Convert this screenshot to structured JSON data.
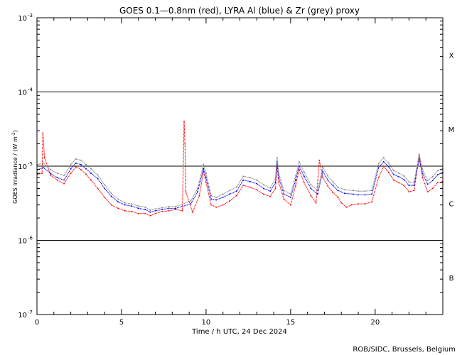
{
  "chart_data": {
    "type": "scatter",
    "title": "GOES 0.1—0.8nm (red), LYRA Al (blue) & Zr (grey) proxy",
    "xlabel": "Time / h UTC, 24 Dec 2024",
    "ylabel": "GOES Irradiance / (W m",
    "ylabel_exp": "-2",
    "ylabel_close": ")",
    "xlim": [
      0,
      24
    ],
    "ylim": [
      1e-07,
      0.001
    ],
    "yscale": "log",
    "x_ticks": [
      {
        "value": 0,
        "label": "0"
      },
      {
        "value": 5,
        "label": "5"
      },
      {
        "value": 10,
        "label": "10"
      },
      {
        "value": 15,
        "label": "15"
      },
      {
        "value": 20,
        "label": "20"
      }
    ],
    "y_ticks": [
      {
        "value": 0.001,
        "base": "10",
        "exp": "-3"
      },
      {
        "value": 0.0001,
        "base": "10",
        "exp": "-4"
      },
      {
        "value": 1e-05,
        "base": "10",
        "exp": "-5"
      },
      {
        "value": 1e-06,
        "base": "10",
        "exp": "-6"
      },
      {
        "value": 1e-07,
        "base": "10",
        "exp": "-7"
      }
    ],
    "flare_classes": [
      {
        "label": "X",
        "value": 0.000316
      },
      {
        "label": "M",
        "value": 3.16e-05
      },
      {
        "label": "C",
        "value": 3.16e-06
      },
      {
        "label": "B",
        "value": 3.16e-07
      }
    ],
    "reference_lines": [
      0.0001,
      1e-05,
      1e-06
    ],
    "series": [
      {
        "color": "#ff0000",
        "x": [
          0.05,
          0.3,
          0.35,
          0.45,
          0.8,
          1.2,
          1.6,
          2.0,
          2.3,
          2.6,
          2.9,
          3.2,
          3.6,
          4.0,
          4.4,
          4.8,
          5.2,
          5.6,
          6.0,
          6.4,
          6.7,
          7.0,
          7.4,
          7.8,
          8.2,
          8.6,
          8.7,
          8.75,
          8.8,
          9.2,
          9.6,
          9.85,
          10.0,
          10.3,
          10.6,
          11.0,
          11.4,
          11.8,
          12.2,
          12.6,
          13.0,
          13.4,
          13.8,
          14.1,
          14.2,
          14.3,
          14.6,
          15.0,
          15.3,
          15.5,
          15.8,
          16.2,
          16.5,
          16.7,
          16.9,
          17.2,
          17.5,
          17.8,
          18.0,
          18.3,
          18.6,
          19.0,
          19.4,
          19.8,
          20.2,
          20.5,
          20.8,
          21.1,
          21.4,
          21.7,
          22.0,
          22.3,
          22.6,
          22.8,
          23.1,
          23.4,
          23.7,
          24.0
        ],
        "y": [
          7.8e-06,
          8e-06,
          2.8e-05,
          1.3e-05,
          7.6e-06,
          6.5e-06,
          5.8e-06,
          8e-06,
          9.8e-06,
          9e-06,
          7.8e-06,
          6.5e-06,
          5e-06,
          3.8e-06,
          3e-06,
          2.7e-06,
          2.5e-06,
          2.45e-06,
          2.3e-06,
          2.3e-06,
          2.15e-06,
          2.3e-06,
          2.45e-06,
          2.5e-06,
          2.6e-06,
          2.5e-06,
          4e-05,
          2e-05,
          4.5e-06,
          2.4e-06,
          4e-06,
          8.5e-06,
          6e-06,
          3e-06,
          2.8e-06,
          3e-06,
          3.4e-06,
          4e-06,
          5.5e-06,
          5.2e-06,
          4.8e-06,
          4.2e-06,
          3.9e-06,
          5e-06,
          1e-05,
          6e-06,
          3.6e-06,
          3e-06,
          5.5e-06,
          9e-06,
          6e-06,
          4e-06,
          3.2e-06,
          1.2e-05,
          7e-06,
          5.4e-06,
          4.4e-06,
          3.8e-06,
          3.2e-06,
          2.8e-06,
          3e-06,
          3.1e-06,
          3.1e-06,
          3.3e-06,
          7e-06,
          1e-05,
          8.2e-06,
          6.5e-06,
          6e-06,
          5.5e-06,
          4.5e-06,
          4.7e-06,
          1.4e-05,
          7e-06,
          4.5e-06,
          5e-06,
          6e-06,
          6.2e-06
        ]
      },
      {
        "color": "#0000ff",
        "x": [
          0.05,
          0.4,
          0.8,
          1.2,
          1.6,
          2.0,
          2.3,
          2.6,
          2.9,
          3.2,
          3.6,
          4.0,
          4.4,
          4.8,
          5.2,
          5.6,
          6.0,
          6.4,
          6.7,
          7.0,
          7.4,
          7.8,
          8.2,
          9.1,
          9.5,
          9.85,
          10.0,
          10.3,
          10.6,
          11.0,
          11.4,
          11.8,
          12.2,
          12.6,
          13.0,
          13.4,
          13.8,
          14.1,
          14.2,
          14.3,
          14.6,
          15.0,
          15.3,
          15.5,
          15.8,
          16.2,
          16.6,
          16.9,
          17.2,
          17.5,
          17.8,
          18.2,
          18.7,
          19.0,
          19.4,
          19.8,
          20.2,
          20.5,
          20.8,
          21.1,
          21.4,
          21.7,
          22.0,
          22.3,
          22.6,
          22.8,
          23.1,
          23.4,
          23.7,
          24.0
        ],
        "y": [
          9e-06,
          9.5e-06,
          8e-06,
          7e-06,
          6.5e-06,
          9.2e-06,
          1.1e-05,
          1.05e-05,
          9.2e-06,
          8e-06,
          6.8e-06,
          5e-06,
          3.9e-06,
          3.3e-06,
          3e-06,
          2.9e-06,
          2.7e-06,
          2.6e-06,
          2.4e-06,
          2.5e-06,
          2.6e-06,
          2.7e-06,
          2.7e-06,
          3.1e-06,
          4.5e-06,
          9.2e-06,
          7e-06,
          3.6e-06,
          3.5e-06,
          3.8e-06,
          4.2e-06,
          4.6e-06,
          6.5e-06,
          6.2e-06,
          5.8e-06,
          5e-06,
          4.6e-06,
          6e-06,
          1.15e-05,
          7e-06,
          4.2e-06,
          3.8e-06,
          6.5e-06,
          1e-05,
          7.3e-06,
          5e-06,
          4.2e-06,
          8.5e-06,
          6.5e-06,
          5.5e-06,
          4.7e-06,
          4.3e-06,
          4.2e-06,
          4.1e-06,
          4.1e-06,
          4.2e-06,
          9.5e-06,
          1.15e-05,
          9.8e-06,
          7.7e-06,
          7.2e-06,
          6.6e-06,
          5.5e-06,
          5.5e-06,
          1.25e-05,
          8e-06,
          5.7e-06,
          6.4e-06,
          7.7e-06,
          8.2e-06
        ]
      },
      {
        "color": "#808080",
        "x": [
          0.05,
          0.4,
          0.8,
          1.2,
          1.6,
          2.0,
          2.3,
          2.6,
          2.9,
          3.2,
          3.6,
          4.0,
          4.4,
          4.8,
          5.2,
          5.6,
          6.0,
          6.4,
          6.7,
          7.0,
          7.4,
          7.8,
          8.2,
          9.1,
          9.5,
          9.85,
          10.0,
          10.3,
          10.6,
          11.0,
          11.4,
          11.8,
          12.2,
          12.6,
          13.0,
          13.4,
          13.8,
          14.1,
          14.2,
          14.3,
          14.6,
          15.0,
          15.3,
          15.5,
          15.8,
          16.2,
          16.6,
          16.9,
          17.2,
          17.5,
          17.8,
          18.2,
          18.7,
          19.0,
          19.4,
          19.8,
          20.2,
          20.5,
          20.8,
          21.1,
          21.4,
          21.7,
          22.0,
          22.3,
          22.6,
          22.8,
          23.1,
          23.4,
          23.7,
          24.0
        ],
        "y": [
          1.05e-05,
          1.1e-05,
          9e-06,
          8e-06,
          7.5e-06,
          1.05e-05,
          1.25e-05,
          1.2e-05,
          1.05e-05,
          9.2e-06,
          7.6e-06,
          5.6e-06,
          4.3e-06,
          3.6e-06,
          3.2e-06,
          3.1e-06,
          2.9e-06,
          2.8e-06,
          2.55e-06,
          2.65e-06,
          2.75e-06,
          2.85e-06,
          2.85e-06,
          3.4e-06,
          5e-06,
          1.05e-05,
          8e-06,
          4e-06,
          3.8e-06,
          4.2e-06,
          4.7e-06,
          5.2e-06,
          7.3e-06,
          7e-06,
          6.5e-06,
          5.6e-06,
          5.1e-06,
          6.8e-06,
          1.3e-05,
          8e-06,
          4.7e-06,
          4.2e-06,
          7.4e-06,
          1.15e-05,
          8.3e-06,
          5.6e-06,
          4.7e-06,
          9.7e-06,
          7.4e-06,
          6.2e-06,
          5.2e-06,
          4.8e-06,
          4.7e-06,
          4.6e-06,
          4.6e-06,
          4.7e-06,
          1.08e-05,
          1.3e-05,
          1.1e-05,
          8.7e-06,
          8.1e-06,
          7.4e-06,
          6.1e-06,
          6.1e-06,
          1.45e-05,
          9e-06,
          6.4e-06,
          7.2e-06,
          8.7e-06,
          9.3e-06
        ]
      }
    ]
  },
  "credit": "ROB/SIDC, Brussels, Belgium"
}
